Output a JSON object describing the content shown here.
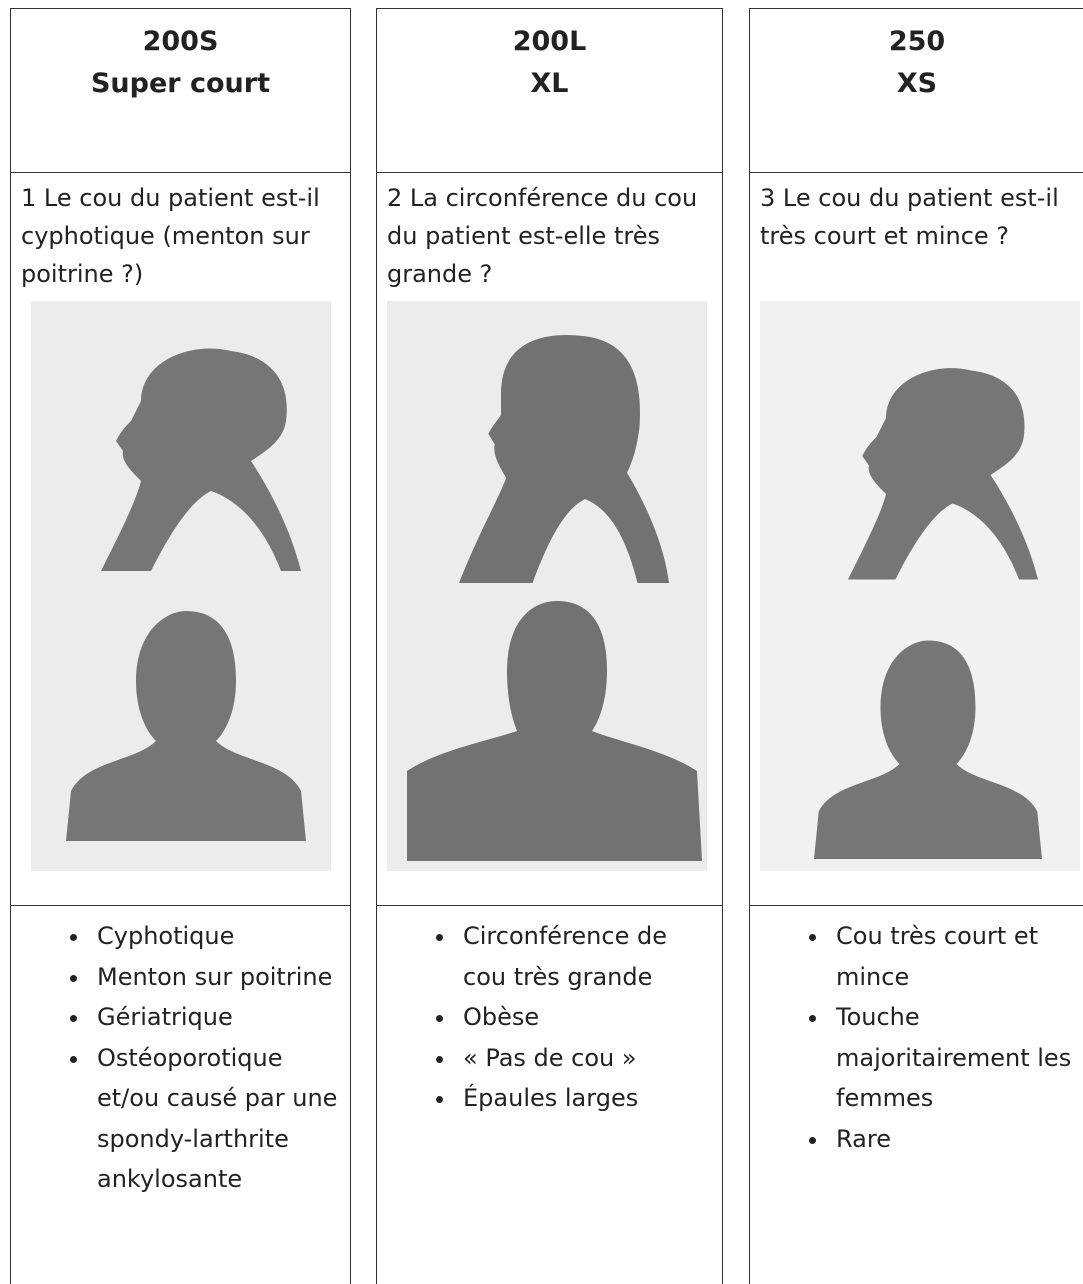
{
  "columns": [
    {
      "code": "200S",
      "name": "Super court",
      "question": "1 Le cou du patient est-il cyphotique (menton sur poitrine ?)",
      "features": [
        "Cyphotique",
        "Menton sur poitrine",
        "Gériatrique",
        "Ostéoporotique et/ou causé par une spondy-larthrite ankylosante"
      ]
    },
    {
      "code": "200L",
      "name": "XL",
      "question": "2 La circonférence du cou du patient est-elle très grande ?",
      "features": [
        "Circonférence de cou très grande",
        "Obèse",
        "« Pas de cou »",
        "Épaules larges"
      ]
    },
    {
      "code": "250",
      "name": "XS",
      "question": "3 Le cou du patient est-il très court et mince ?",
      "features": [
        "Cou très court et mince",
        "Touche majoritairement les femmes",
        "Rare"
      ]
    }
  ]
}
